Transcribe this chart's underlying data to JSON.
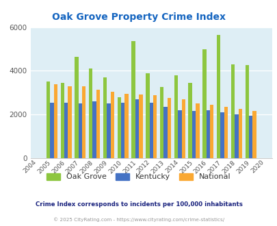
{
  "title": "Oak Grove Property Crime Index",
  "title_color": "#1565c0",
  "years": [
    2004,
    2005,
    2006,
    2007,
    2008,
    2009,
    2010,
    2011,
    2012,
    2013,
    2014,
    2015,
    2016,
    2017,
    2018,
    2019,
    2020
  ],
  "oak_grove": [
    null,
    3500,
    3450,
    4650,
    4100,
    3700,
    2800,
    5350,
    3900,
    3250,
    3800,
    3450,
    5000,
    5650,
    4300,
    4250,
    null
  ],
  "kentucky": [
    null,
    2550,
    2550,
    2500,
    2600,
    2500,
    2550,
    2700,
    2550,
    2350,
    2200,
    2150,
    2200,
    2100,
    2000,
    1950,
    null
  ],
  "national": [
    null,
    3400,
    3300,
    3300,
    3150,
    3050,
    2950,
    2900,
    2880,
    2750,
    2700,
    2500,
    2450,
    2350,
    2250,
    2150,
    null
  ],
  "oak_grove_color": "#8dc63f",
  "kentucky_color": "#4472c4",
  "national_color": "#faa832",
  "bg_color": "#deeef5",
  "ylim": [
    0,
    6000
  ],
  "yticks": [
    0,
    2000,
    4000,
    6000
  ],
  "subtitle": "Crime Index corresponds to incidents per 100,000 inhabitants",
  "footer": "© 2025 CityRating.com - https://www.cityrating.com/crime-statistics/",
  "subtitle_color": "#1a237e",
  "footer_color": "#999999"
}
